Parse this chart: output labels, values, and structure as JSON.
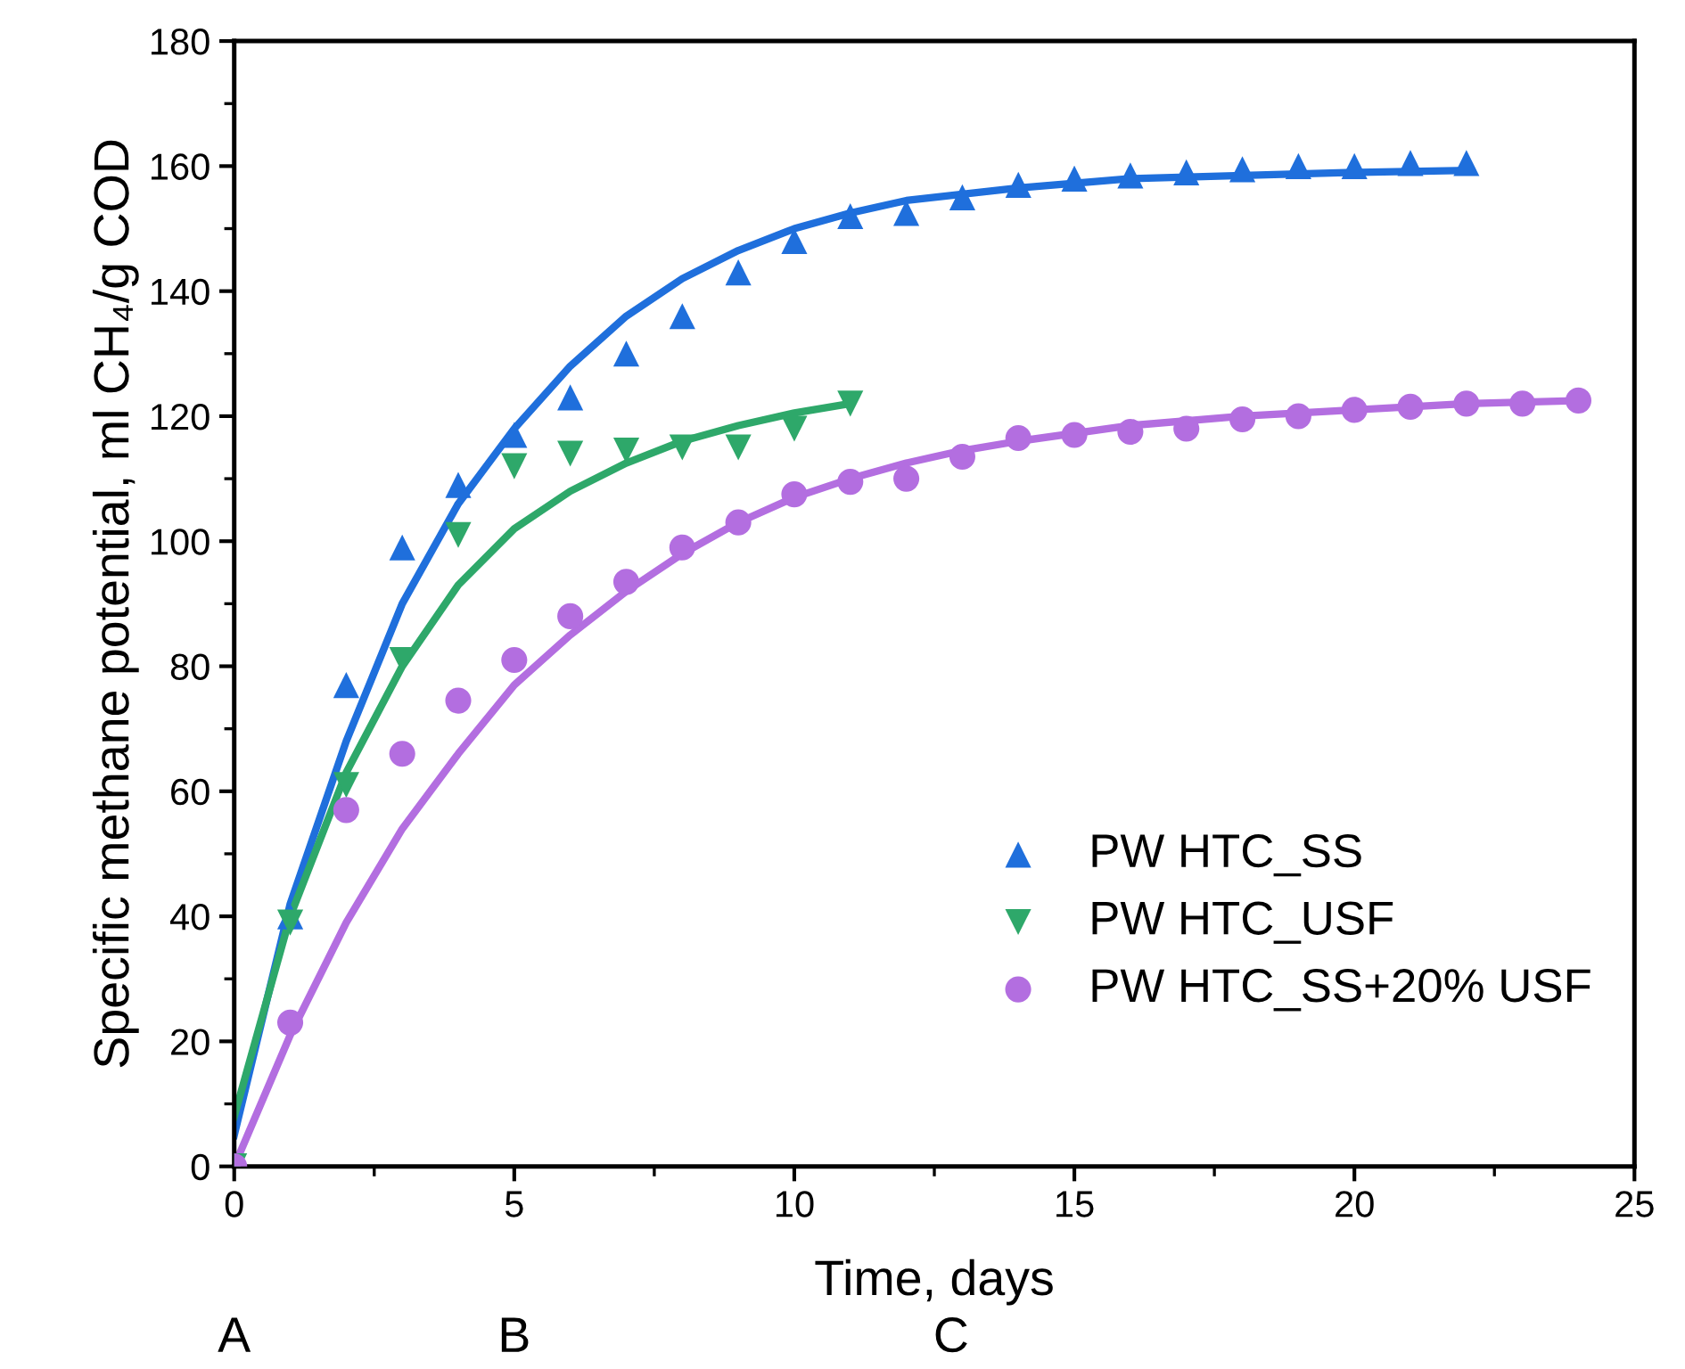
{
  "chart_data": {
    "type": "scatter",
    "xlabel": "Time, days",
    "ylabel": "Specific methane potential, ml CH₄/g COD",
    "annotations": [
      "A",
      "B",
      "C"
    ],
    "xlim": [
      0,
      25
    ],
    "xticks": [
      0,
      5,
      10,
      15,
      20,
      25
    ],
    "ylim": [
      0,
      180
    ],
    "yticks": [
      0,
      20,
      40,
      60,
      80,
      100,
      120,
      140,
      160,
      180
    ],
    "grid": false,
    "legend": "bottom right",
    "series": [
      {
        "name": "PW HTC_SS",
        "marker": "triangle",
        "color": "#1f6fdc",
        "x": [
          1,
          2,
          3,
          4,
          5,
          6,
          7,
          8,
          9,
          10,
          11,
          12,
          13,
          14,
          15,
          16,
          17,
          18,
          19,
          20,
          21,
          22
        ],
        "values": [
          40,
          77,
          99,
          109,
          117,
          123,
          130,
          136,
          143,
          148,
          152,
          152.5,
          155,
          157,
          158,
          158.5,
          159,
          159.5,
          160,
          160,
          160.5,
          160.5
        ]
      },
      {
        "name": "PW HTC_USF",
        "marker": "triangle_down",
        "color": "#2ea86a",
        "x": [
          0,
          1,
          2,
          3,
          4,
          5,
          6,
          7,
          8,
          9,
          10,
          11
        ],
        "values": [
          0,
          39,
          61,
          81,
          101,
          112,
          114,
          114.5,
          115,
          115,
          118,
          122
        ]
      },
      {
        "name": "PW HTC_SS+20% USF",
        "marker": "circle",
        "color": "#b36ee0",
        "x": [
          0,
          1,
          2,
          3,
          4,
          5,
          6,
          7,
          8,
          9,
          10,
          11,
          12,
          13,
          14,
          15,
          16,
          17,
          18,
          19,
          20,
          21,
          22,
          23,
          24
        ],
        "values": [
          0,
          23,
          57,
          66,
          74.5,
          81,
          88,
          93.5,
          99,
          103,
          107.5,
          109.5,
          110,
          113.5,
          116.5,
          117,
          117.5,
          118,
          119.5,
          120,
          121,
          121.5,
          122,
          122,
          122.5
        ]
      },
      {
        "type": "line",
        "color": "#1f6fdc",
        "x": [
          0,
          1,
          2,
          3,
          4,
          5,
          6,
          7,
          8,
          9,
          10,
          11,
          12,
          14,
          16,
          18,
          20,
          22
        ],
        "values": [
          5,
          42,
          68,
          90,
          106,
          118,
          128,
          136,
          142,
          146.5,
          150,
          152.5,
          154.5,
          156.5,
          158,
          158.5,
          159,
          159.3
        ]
      },
      {
        "type": "line",
        "color": "#2ea86a",
        "x": [
          0,
          1,
          2,
          3,
          4,
          5,
          6,
          7,
          8,
          9,
          10,
          11
        ],
        "values": [
          8,
          40,
          63,
          80,
          93,
          102,
          108,
          112.5,
          116,
          118.5,
          120.5,
          122
        ]
      },
      {
        "type": "line",
        "color": "#b36ee0",
        "x": [
          0,
          1,
          2,
          3,
          4,
          5,
          6,
          7,
          8,
          9,
          10,
          11,
          12,
          13,
          14,
          16,
          18,
          20,
          22,
          24
        ],
        "values": [
          0,
          21,
          39,
          54,
          66,
          77,
          85,
          92,
          98,
          103,
          107,
          110,
          112.5,
          114.5,
          116,
          118.5,
          120,
          121,
          122,
          122.5
        ]
      }
    ]
  }
}
